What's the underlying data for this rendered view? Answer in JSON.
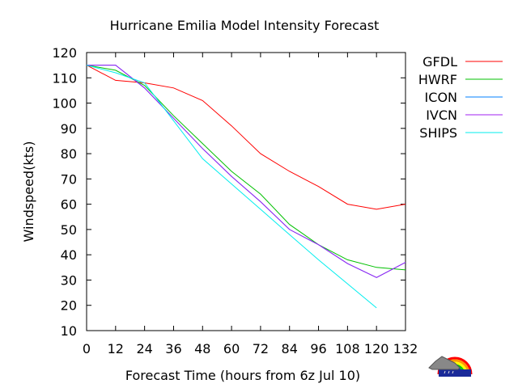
{
  "chart_data": {
    "type": "line",
    "title": "Hurricane Emilia Model Intensity Forecast",
    "xlabel": "Forecast Time  (hours from 6z Jul 10)",
    "ylabel": "Windspeed(kts)",
    "xlim": [
      0,
      132
    ],
    "ylim": [
      10,
      120
    ],
    "xticks": [
      0,
      12,
      24,
      36,
      48,
      60,
      72,
      84,
      96,
      108,
      120,
      132
    ],
    "yticks": [
      10,
      20,
      30,
      40,
      50,
      60,
      70,
      80,
      90,
      100,
      110,
      120
    ],
    "grid": false,
    "legend_position": "right",
    "x": [
      0,
      12,
      24,
      36,
      48,
      60,
      72,
      84,
      96,
      108,
      120,
      132
    ],
    "series": [
      {
        "name": "GFDL",
        "color": "#ff0000",
        "values": [
          115,
          109,
          108,
          106,
          101,
          91,
          80,
          73,
          67,
          60,
          58,
          60
        ]
      },
      {
        "name": "HWRF",
        "color": "#00c000",
        "values": [
          115,
          113,
          107,
          95,
          84,
          73,
          64,
          52,
          44,
          38,
          35,
          34
        ]
      },
      {
        "name": "ICON",
        "color": "#0080ff",
        "values": [
          115,
          115,
          106,
          94,
          82,
          71,
          61,
          50,
          44,
          36.5,
          31,
          37
        ]
      },
      {
        "name": "IVCN",
        "color": "#a020f0",
        "values": [
          115,
          115,
          106,
          94,
          82,
          71,
          61,
          50,
          44,
          36.5,
          31,
          37
        ]
      },
      {
        "name": "SHIPS",
        "color": "#00eeee",
        "values": [
          115,
          112,
          108,
          93,
          78,
          68,
          58,
          48,
          38,
          28.5,
          19,
          null
        ]
      }
    ]
  },
  "logo": {
    "name": "weather-logo-icon"
  }
}
